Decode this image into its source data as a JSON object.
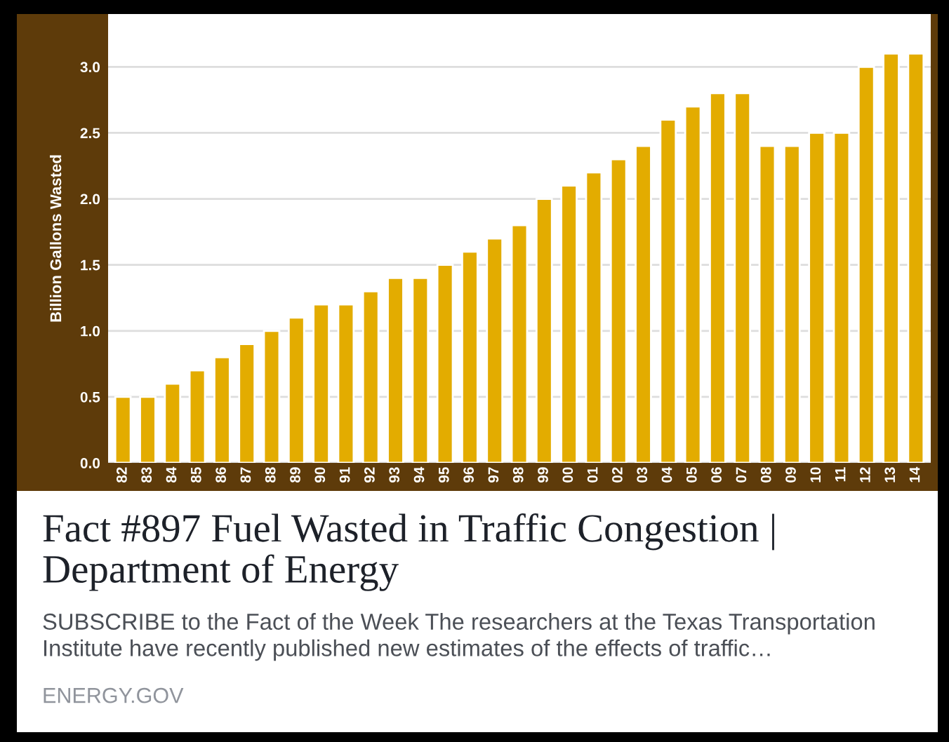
{
  "chart_data": {
    "type": "bar",
    "title": "Fact #897 Fuel Wasted in Traffic Congestion | Department of Energy",
    "subtitle": "SUBSCRIBE to the Fact of the Week The researchers at the Texas Transportation Institute have recently published new estimates of the effects of traffic…",
    "annotations": [
      "ENERGY.GOV"
    ],
    "ylabel": "Billion Gallons Wasted",
    "categories": [
      "82",
      "83",
      "84",
      "85",
      "86",
      "87",
      "88",
      "89",
      "90",
      "91",
      "92",
      "93",
      "94",
      "95",
      "96",
      "97",
      "98",
      "99",
      "00",
      "01",
      "02",
      "03",
      "04",
      "05",
      "06",
      "07",
      "08",
      "09",
      "10",
      "11",
      "12",
      "13",
      "14"
    ],
    "values": [
      0.5,
      0.5,
      0.6,
      0.7,
      0.8,
      0.9,
      1.0,
      1.1,
      1.2,
      1.2,
      1.3,
      1.4,
      1.4,
      1.5,
      1.6,
      1.7,
      1.8,
      2.0,
      2.1,
      2.2,
      2.3,
      2.4,
      2.6,
      2.7,
      2.8,
      2.8,
      2.4,
      2.4,
      2.5,
      2.5,
      3.0,
      3.1,
      3.1
    ],
    "color": "#e3ac00",
    "ylim": [
      0,
      3.4
    ],
    "yticks": [
      {
        "value": 0,
        "label": "0.0"
      },
      {
        "value": 0.5,
        "label": "0.5"
      },
      {
        "value": 1,
        "label": "1.0"
      },
      {
        "value": 1.5,
        "label": "1.5"
      },
      {
        "value": 2,
        "label": "2.0"
      },
      {
        "value": 2.5,
        "label": "2.5"
      },
      {
        "value": 3,
        "label": "3.0"
      }
    ],
    "grid": "y"
  }
}
